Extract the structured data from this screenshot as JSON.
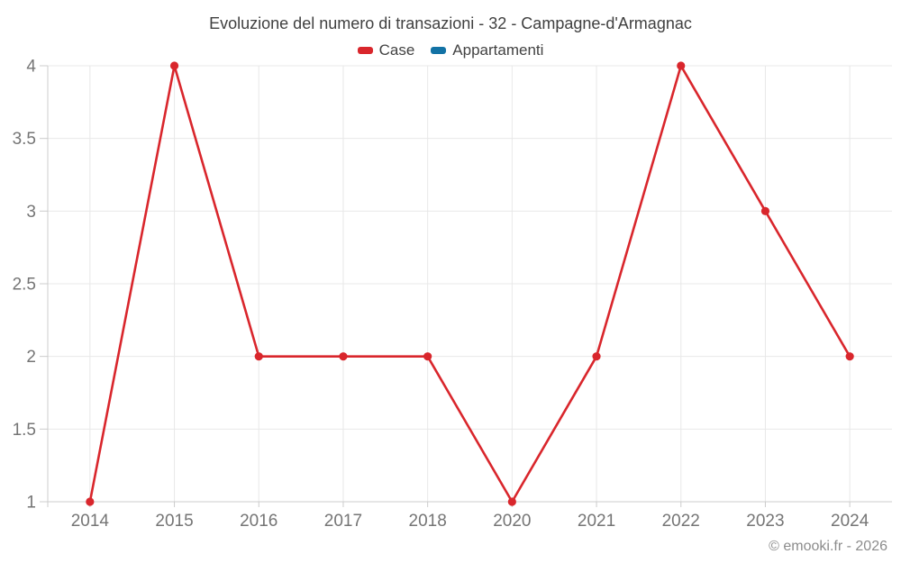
{
  "chart_data": {
    "type": "line",
    "title": "Evoluzione del numero di transazioni - 32 - Campagne-d'Armagnac",
    "categories": [
      "2014",
      "2015",
      "2016",
      "2017",
      "2018",
      "2020",
      "2021",
      "2022",
      "2023",
      "2024"
    ],
    "series": [
      {
        "name": "Case",
        "color": "#d9262c",
        "values": [
          1,
          4,
          2,
          2,
          2,
          1,
          2,
          4,
          3,
          2
        ]
      },
      {
        "name": "Appartamenti",
        "color": "#1272a5",
        "values": []
      }
    ],
    "yticks": [
      "1",
      "1.5",
      "2",
      "2.5",
      "3",
      "3.5",
      "4"
    ],
    "ylim": [
      1,
      4
    ],
    "grid": true,
    "legend_position": "top"
  },
  "footer": {
    "copyright": "© emooki.fr - 2026"
  },
  "colors": {
    "grid": "#e8e8e8",
    "axis": "#cccccc",
    "tick_label": "#757575",
    "title_text": "#404040",
    "footer_text": "#8c8c8c"
  }
}
